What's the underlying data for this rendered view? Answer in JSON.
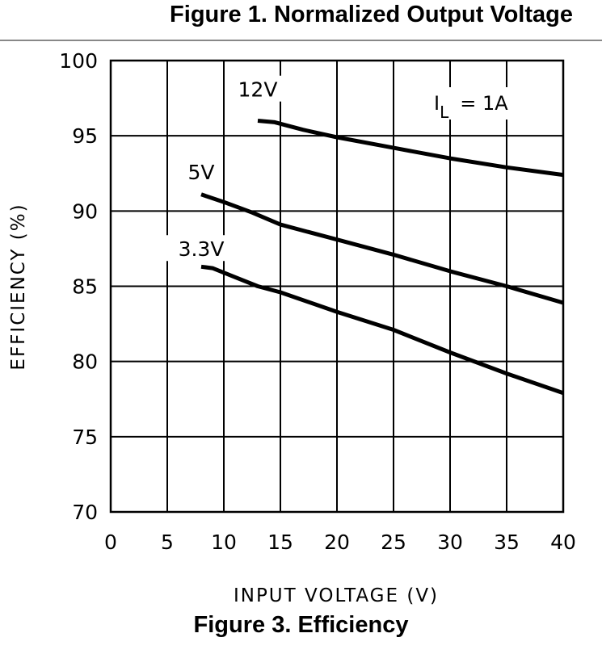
{
  "page": {
    "top_caption": "Figure 1. Normalized Output Voltage",
    "bottom_caption": "Figure 3. Efficiency"
  },
  "chart_data": {
    "type": "line",
    "title": "",
    "xlabel": "INPUT VOLTAGE (V)",
    "ylabel": "EFFICIENCY (%)",
    "xlim": [
      0,
      40
    ],
    "ylim": [
      70,
      100
    ],
    "xticks": [
      0,
      5,
      10,
      15,
      20,
      25,
      30,
      35,
      40
    ],
    "yticks": [
      70,
      75,
      80,
      85,
      90,
      95,
      100
    ],
    "grid": true,
    "annotation": {
      "main": "I",
      "sub": "L",
      "rest": "= 1A"
    },
    "series": [
      {
        "name": "12V",
        "x": [
          13,
          14.5,
          17,
          20,
          25,
          30,
          35,
          40
        ],
        "y": [
          96.0,
          95.9,
          95.4,
          94.9,
          94.2,
          93.5,
          92.9,
          92.4
        ]
      },
      {
        "name": "5V",
        "x": [
          8,
          10,
          12.5,
          15,
          20,
          25,
          30,
          35,
          40
        ],
        "y": [
          91.1,
          90.6,
          89.9,
          89.1,
          88.1,
          87.1,
          86.0,
          85.0,
          83.9
        ]
      },
      {
        "name": "3.3V",
        "x": [
          8,
          9,
          11,
          13,
          15,
          20,
          25,
          30,
          35,
          40
        ],
        "y": [
          86.3,
          86.2,
          85.6,
          85.0,
          84.6,
          83.3,
          82.1,
          80.6,
          79.2,
          77.9
        ]
      }
    ]
  }
}
